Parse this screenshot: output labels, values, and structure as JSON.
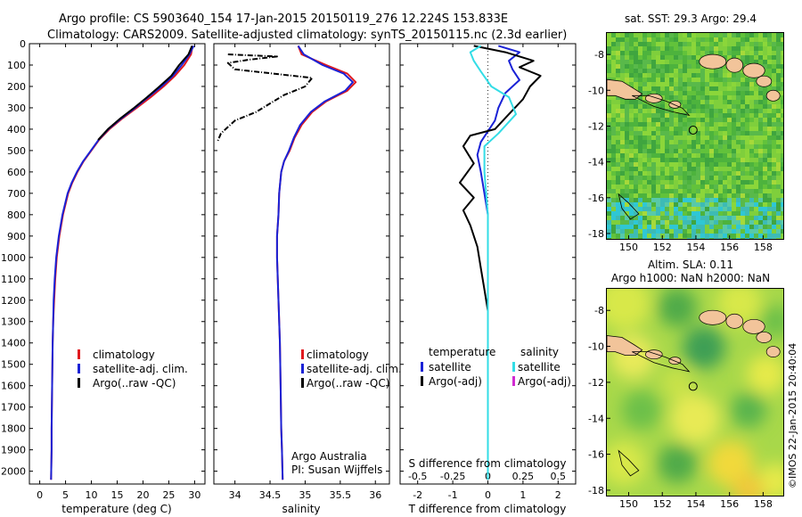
{
  "header": {
    "line1": "Argo profile: CS 5903640_154 17-Jan-2015 20150119_276 12.224S 153.833E",
    "line2": "Climatology: CARS2009. Satellite-adjusted climatology: synTS_20150115.nc (2.3d earlier)"
  },
  "colors": {
    "climatology": "#e0191e",
    "satellite": "#1a22d6",
    "argo": "#000000",
    "cyan": "#33dde6",
    "magenta": "#d12bd1",
    "land": "#f2c49a"
  },
  "chart_data": [
    {
      "type": "line",
      "panel": "temperature",
      "xlabel": "temperature (deg C)",
      "ylabel": "",
      "xlim": [
        -2,
        32
      ],
      "ylim": [
        2060,
        0
      ],
      "xticks": [
        0,
        5,
        10,
        15,
        20,
        25,
        30
      ],
      "yticks": [
        0,
        100,
        200,
        300,
        400,
        500,
        600,
        700,
        800,
        900,
        1000,
        1100,
        1200,
        1300,
        1400,
        1500,
        1600,
        1700,
        1800,
        1900,
        2000
      ],
      "legend": [
        "climatology",
        "satellite-adj. clim.",
        "Argo(..raw -QC)"
      ],
      "series": [
        {
          "name": "climatology",
          "color": "climatology",
          "x": [
            29.6,
            29.3,
            28.0,
            26.2,
            24.0,
            21.5,
            18.8,
            16.0,
            13.5,
            11.5,
            10.0,
            8.5,
            7.3,
            6.3,
            5.5,
            4.5,
            3.8,
            3.3,
            3.0,
            2.8,
            2.6,
            2.5,
            2.4,
            2.3,
            2.3,
            2.2
          ],
          "y": [
            10,
            50,
            100,
            150,
            200,
            250,
            300,
            350,
            400,
            450,
            500,
            550,
            600,
            650,
            700,
            800,
            900,
            1000,
            1100,
            1200,
            1300,
            1400,
            1600,
            1800,
            1900,
            2040
          ]
        },
        {
          "name": "satellite-adj. clim.",
          "color": "satellite",
          "x": [
            29.8,
            29.0,
            27.5,
            25.8,
            23.6,
            21.0,
            18.5,
            15.8,
            13.3,
            11.4,
            9.9,
            8.4,
            7.2,
            6.2,
            5.4,
            4.4,
            3.7,
            3.2,
            2.9,
            2.7,
            2.6,
            2.5,
            2.4,
            2.3,
            2.3,
            2.2
          ],
          "y": [
            10,
            50,
            100,
            150,
            200,
            250,
            300,
            350,
            400,
            450,
            500,
            550,
            600,
            650,
            700,
            800,
            900,
            1000,
            1100,
            1200,
            1300,
            1400,
            1600,
            1800,
            1900,
            2040
          ]
        },
        {
          "name": "Argo(..raw -QC)",
          "color": "argo",
          "x": [
            29.5,
            28.8,
            27.0,
            25.5,
            23.2,
            20.8,
            18.3,
            15.6,
            13.2,
            11.3
          ],
          "y": [
            10,
            50,
            100,
            150,
            200,
            250,
            300,
            350,
            400,
            450
          ]
        }
      ]
    },
    {
      "type": "line",
      "panel": "salinity",
      "xlabel": "salinity",
      "ylabel": "",
      "xlim": [
        33.7,
        36.2
      ],
      "ylim": [
        2060,
        0
      ],
      "xticks": [
        34,
        34.5,
        35,
        35.5,
        36
      ],
      "legend": [
        "climatology",
        "satellite-adj. clim.",
        "Argo(..raw -QC)"
      ],
      "annotations": [
        "Argo Australia",
        "PI: Susan Wijffels"
      ],
      "series": [
        {
          "name": "climatology",
          "color": "climatology",
          "x": [
            34.9,
            34.95,
            35.3,
            35.6,
            35.72,
            35.6,
            35.3,
            35.1,
            34.95,
            34.85,
            34.78,
            34.7,
            34.66,
            34.63,
            34.62,
            34.6,
            34.6,
            34.61,
            34.62,
            34.63,
            34.64,
            34.65,
            34.66,
            34.67,
            34.68
          ],
          "y": [
            10,
            50,
            100,
            140,
            180,
            220,
            270,
            320,
            380,
            440,
            500,
            550,
            600,
            700,
            800,
            900,
            1000,
            1100,
            1200,
            1300,
            1400,
            1600,
            1800,
            1900,
            2040
          ]
        },
        {
          "name": "satellite-adj. clim.",
          "color": "satellite",
          "x": [
            34.9,
            34.98,
            35.25,
            35.55,
            35.68,
            35.57,
            35.28,
            35.08,
            34.93,
            34.84,
            34.77,
            34.7,
            34.66,
            34.63,
            34.62,
            34.6,
            34.6,
            34.61,
            34.62,
            34.63,
            34.64,
            34.65,
            34.66,
            34.67,
            34.68
          ],
          "y": [
            10,
            50,
            100,
            140,
            180,
            220,
            270,
            320,
            380,
            440,
            500,
            550,
            600,
            700,
            800,
            900,
            1000,
            1100,
            1200,
            1300,
            1400,
            1600,
            1800,
            1900,
            2040
          ]
        },
        {
          "name": "Argo(..raw -QC)",
          "color": "argo",
          "x": [
            33.9,
            34.6,
            34.2,
            33.9,
            34.0,
            35.1,
            35.0,
            34.7,
            34.5,
            34.3,
            34.0,
            33.8,
            33.75
          ],
          "y": [
            50,
            60,
            75,
            90,
            120,
            160,
            200,
            240,
            280,
            320,
            360,
            420,
            460
          ]
        }
      ]
    },
    {
      "type": "line",
      "panel": "difference",
      "xlabel": "T difference from climatology",
      "top_xlabel": "S difference from climatology",
      "ylabel": "",
      "xlim": [
        -2.5,
        2.5
      ],
      "ylim": [
        2060,
        0
      ],
      "xticks": [
        -2,
        -1,
        0,
        1,
        2
      ],
      "top_xticks": [
        -0.5,
        -0.25,
        0,
        0.25,
        0.5
      ],
      "legend_temperature_title": "temperature",
      "legend_salinity_title": "salinity",
      "legend": [
        "satellite",
        "Argo(-adj)",
        "satellite",
        "Argo(-adj)"
      ],
      "series": [
        {
          "name": "temperature satellite",
          "color": "satellite",
          "x": [
            0.3,
            0.9,
            0.6,
            0.7,
            0.9,
            0.5,
            0.3,
            0.2,
            0.0,
            -0.2,
            -0.3,
            -0.2,
            -0.1,
            0.0,
            0.0,
            0.0,
            0.0
          ],
          "y": [
            10,
            40,
            80,
            120,
            170,
            230,
            300,
            360,
            410,
            460,
            520,
            600,
            700,
            800,
            900,
            1000,
            1200
          ]
        },
        {
          "name": "temperature Argo",
          "color": "argo",
          "x": [
            -0.4,
            0.5,
            1.3,
            0.9,
            1.5,
            1.2,
            1.0,
            0.6,
            0.2,
            -0.5,
            -0.7,
            -0.4,
            -0.8,
            -0.4,
            -0.7,
            -0.5,
            -0.3,
            -0.2,
            -0.1,
            0.0
          ],
          "y": [
            10,
            40,
            80,
            110,
            150,
            200,
            260,
            330,
            400,
            430,
            480,
            560,
            650,
            720,
            780,
            850,
            950,
            1050,
            1150,
            1250
          ]
        },
        {
          "name": "salinity satellite",
          "color": "cyan",
          "x": [
            -0.2,
            -0.5,
            -0.4,
            -0.2,
            0.1,
            0.6,
            0.8,
            0.3,
            -0.1,
            -0.1,
            0.0,
            0.0,
            0.0,
            0.0,
            0.0,
            0.0
          ],
          "y": [
            10,
            40,
            80,
            130,
            200,
            250,
            330,
            420,
            480,
            600,
            800,
            1000,
            1300,
            1600,
            1900,
            2040
          ]
        }
      ]
    },
    {
      "type": "heatmap",
      "panel": "sst_map",
      "title": "sat. SST: 29.3 Argo: 29.4",
      "xticks": [
        150,
        152,
        154,
        156,
        158
      ],
      "yticks": [
        -8,
        -10,
        -12,
        -14,
        -16,
        -18
      ],
      "xlim": [
        148.7,
        159.2
      ],
      "ylim": [
        -18.3,
        -6.8
      ],
      "marker": {
        "lon": 153.833,
        "lat": -12.224
      }
    },
    {
      "type": "heatmap",
      "panel": "sla_map",
      "title": "Altim. SLA: 0.11",
      "subtitle": "Argo h1000: NaN h2000: NaN",
      "xticks": [
        150,
        152,
        154,
        156,
        158
      ],
      "yticks": [
        -8,
        -10,
        -12,
        -14,
        -16,
        -18
      ],
      "xlim": [
        148.7,
        159.2
      ],
      "ylim": [
        -18.3,
        -6.8
      ],
      "marker": {
        "lon": 153.833,
        "lat": -12.224
      }
    }
  ],
  "credit": "©IMOS 22-Jan-2015 20:40:04"
}
